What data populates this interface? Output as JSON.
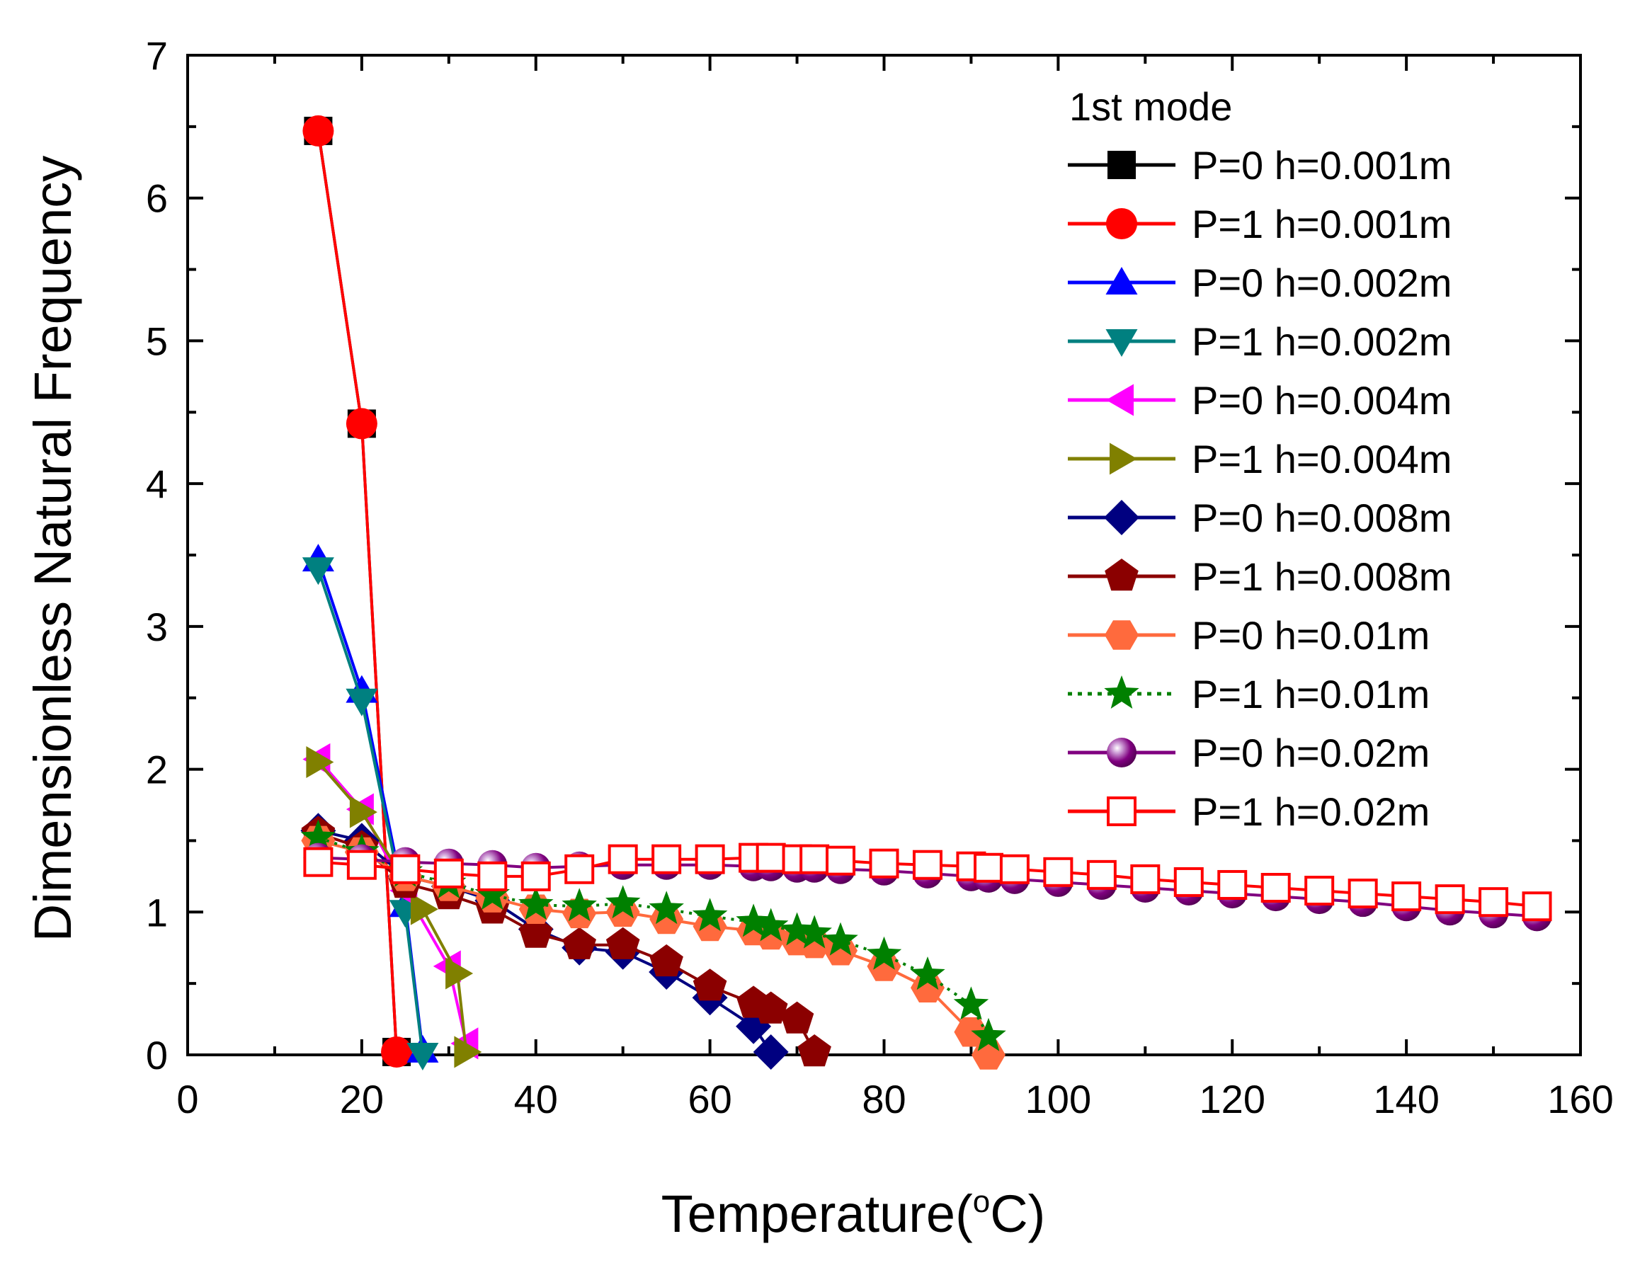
{
  "chart_data": {
    "type": "scatter",
    "title": "",
    "xlabel": "Temperature(",
    "xlabel_sup": "o",
    "xlabel_unit": "C)",
    "ylabel": "Dimensionless Natural Frequency",
    "xlim": [
      0,
      160
    ],
    "ylim": [
      0,
      7
    ],
    "xticks": [
      0,
      20,
      40,
      60,
      80,
      100,
      120,
      140,
      160
    ],
    "yticks": [
      0,
      1,
      2,
      3,
      4,
      5,
      6,
      7
    ],
    "grid": false,
    "legend_title": "1st mode",
    "legend_placement": "top-right",
    "series": [
      {
        "name": "P=0 h=0.001m",
        "color": "#000000",
        "marker": "square-filled",
        "line": "solid",
        "x": [
          15,
          20,
          24
        ],
        "y": [
          6.47,
          4.42,
          0.02
        ]
      },
      {
        "name": "P=1 h=0.001m",
        "color": "#ff0000",
        "marker": "circle-filled",
        "line": "solid",
        "x": [
          15,
          20,
          24
        ],
        "y": [
          6.47,
          4.42,
          0.02
        ]
      },
      {
        "name": "P=0 h=0.002m",
        "color": "#0000ff",
        "marker": "triangle-up",
        "line": "solid",
        "x": [
          15,
          20,
          25,
          27
        ],
        "y": [
          3.47,
          2.55,
          1.05,
          0.03
        ]
      },
      {
        "name": "P=1 h=0.002m",
        "color": "#008080",
        "marker": "triangle-down",
        "line": "solid",
        "x": [
          15,
          20,
          25,
          27
        ],
        "y": [
          3.4,
          2.48,
          1.0,
          0.0
        ]
      },
      {
        "name": "P=0 h=0.004m",
        "color": "#ff00ff",
        "marker": "triangle-left",
        "line": "solid",
        "x": [
          15,
          20,
          25,
          30,
          32
        ],
        "y": [
          2.07,
          1.72,
          1.15,
          0.62,
          0.08
        ]
      },
      {
        "name": "P=1 h=0.004m",
        "color": "#808000",
        "marker": "triangle-right",
        "line": "solid",
        "x": [
          15,
          20,
          27,
          31,
          32
        ],
        "y": [
          2.05,
          1.7,
          1.02,
          0.57,
          0.02
        ]
      },
      {
        "name": "P=0 h=0.008m",
        "color": "#000080",
        "marker": "diamond-filled",
        "line": "solid",
        "x": [
          15,
          20,
          25,
          30,
          35,
          40,
          45,
          50,
          55,
          60,
          65,
          67
        ],
        "y": [
          1.57,
          1.5,
          1.25,
          1.18,
          1.08,
          0.88,
          0.75,
          0.72,
          0.58,
          0.4,
          0.2,
          0.02
        ]
      },
      {
        "name": "P=1 h=0.008m",
        "color": "#8b0000",
        "marker": "pentagon-filled",
        "line": "solid",
        "x": [
          15,
          20,
          25,
          30,
          35,
          40,
          45,
          50,
          55,
          60,
          65,
          67,
          70,
          72
        ],
        "y": [
          1.55,
          1.45,
          1.2,
          1.12,
          1.02,
          0.85,
          0.77,
          0.77,
          0.65,
          0.48,
          0.36,
          0.32,
          0.25,
          0.02
        ]
      },
      {
        "name": "P=0 h=0.01m",
        "color": "#ff6a3d",
        "marker": "hexagon-filled",
        "line": "solid",
        "x": [
          15,
          20,
          25,
          30,
          35,
          40,
          45,
          50,
          55,
          60,
          65,
          67,
          70,
          72,
          75,
          80,
          85,
          90,
          92
        ],
        "y": [
          1.5,
          1.42,
          1.25,
          1.18,
          1.1,
          1.02,
          0.99,
          1.0,
          0.95,
          0.9,
          0.87,
          0.84,
          0.8,
          0.78,
          0.73,
          0.62,
          0.47,
          0.16,
          0.0
        ]
      },
      {
        "name": "P=1 h=0.01m",
        "color": "#008000",
        "marker": "star-filled",
        "line": "dot",
        "x": [
          15,
          20,
          25,
          30,
          35,
          40,
          45,
          50,
          55,
          60,
          65,
          67,
          70,
          72,
          75,
          80,
          85,
          90,
          92
        ],
        "y": [
          1.52,
          1.42,
          1.28,
          1.2,
          1.12,
          1.05,
          1.04,
          1.06,
          1.02,
          0.97,
          0.93,
          0.9,
          0.87,
          0.85,
          0.8,
          0.7,
          0.56,
          0.35,
          0.13
        ]
      },
      {
        "name": "P=0 h=0.02m",
        "color": "#800080",
        "marker": "sphere",
        "line": "solid",
        "x": [
          15,
          20,
          25,
          30,
          35,
          40,
          45,
          50,
          55,
          60,
          65,
          67,
          70,
          72,
          75,
          80,
          85,
          90,
          92,
          95,
          100,
          105,
          110,
          115,
          120,
          125,
          130,
          135,
          140,
          145,
          150,
          155
        ],
        "y": [
          1.38,
          1.37,
          1.35,
          1.34,
          1.33,
          1.31,
          1.32,
          1.33,
          1.33,
          1.33,
          1.32,
          1.32,
          1.31,
          1.31,
          1.3,
          1.29,
          1.27,
          1.25,
          1.24,
          1.23,
          1.21,
          1.19,
          1.17,
          1.15,
          1.13,
          1.11,
          1.09,
          1.07,
          1.04,
          1.01,
          0.99,
          0.97
        ]
      },
      {
        "name": "P=1 h=0.02m",
        "color": "#ff0000",
        "marker": "square-open",
        "line": "solid",
        "x": [
          15,
          20,
          25,
          30,
          35,
          40,
          45,
          50,
          55,
          60,
          65,
          67,
          70,
          72,
          75,
          80,
          85,
          90,
          92,
          95,
          100,
          105,
          110,
          115,
          120,
          125,
          130,
          135,
          140,
          145,
          150,
          155
        ],
        "y": [
          1.35,
          1.33,
          1.3,
          1.27,
          1.25,
          1.25,
          1.3,
          1.37,
          1.37,
          1.37,
          1.38,
          1.38,
          1.37,
          1.37,
          1.36,
          1.34,
          1.33,
          1.32,
          1.31,
          1.3,
          1.28,
          1.26,
          1.23,
          1.21,
          1.19,
          1.17,
          1.15,
          1.13,
          1.11,
          1.09,
          1.07,
          1.04
        ]
      }
    ]
  }
}
